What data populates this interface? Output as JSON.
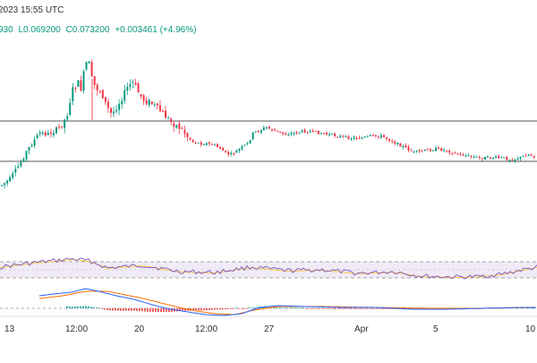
{
  "header": {
    "datetime": "2023 15:55 UTC"
  },
  "ohlc": {
    "open": "930",
    "low": "L0.069200",
    "close": "C0.073200",
    "change": "+0.003461 (+4.96%)"
  },
  "colors": {
    "up": "#089981",
    "down": "#f23645",
    "ohlc_text": "#089981",
    "rsi_line": "#7e57c2",
    "rsi_ma": "#f7c948",
    "rsi_band": "#ede7f6",
    "macd_line": "#2962ff",
    "signal_line": "#ff6d00",
    "hist_up": "#26a69a",
    "hist_down": "#ef5350",
    "level_line": "#555555"
  },
  "chart_data": {
    "type": "candlestick",
    "x_ticks": [
      "13",
      "12:00",
      "20",
      "12:00",
      "27",
      "Apr",
      "5",
      "10"
    ],
    "horizontal_levels": [
      "upper-line",
      "lower-line"
    ],
    "panes": [
      "price",
      "rsi",
      "macd"
    ]
  }
}
